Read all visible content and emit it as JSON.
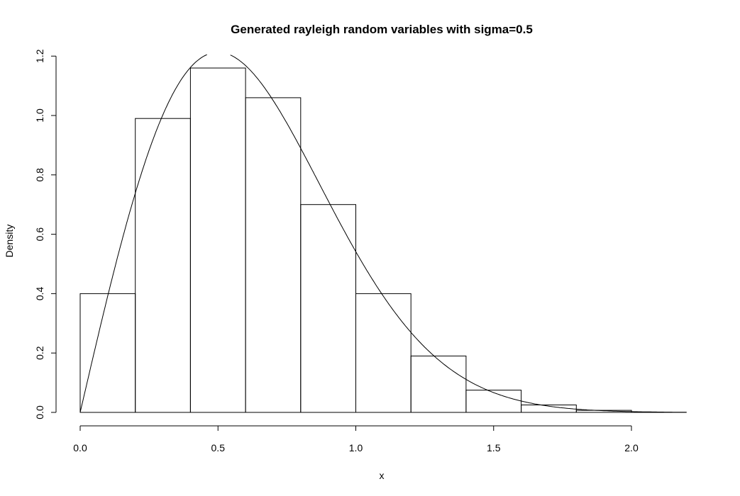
{
  "chart_data": {
    "type": "bar",
    "title": "Generated rayleigh random variables with sigma=0.5",
    "xlabel": "x",
    "ylabel": "Density",
    "xlim": [
      0.0,
      2.2
    ],
    "ylim": [
      0.0,
      1.2
    ],
    "x_ticks": [
      "0.0",
      "0.5",
      "1.0",
      "1.5",
      "2.0"
    ],
    "y_ticks": [
      "0.0",
      "0.2",
      "0.4",
      "0.6",
      "0.8",
      "1.0",
      "1.2"
    ],
    "bins": [
      {
        "start": 0.0,
        "end": 0.2,
        "density": 0.4
      },
      {
        "start": 0.2,
        "end": 0.4,
        "density": 0.99
      },
      {
        "start": 0.4,
        "end": 0.6,
        "density": 1.16
      },
      {
        "start": 0.6,
        "end": 0.8,
        "density": 1.06
      },
      {
        "start": 0.8,
        "end": 1.0,
        "density": 0.7
      },
      {
        "start": 1.0,
        "end": 1.2,
        "density": 0.4
      },
      {
        "start": 1.2,
        "end": 1.4,
        "density": 0.19
      },
      {
        "start": 1.4,
        "end": 1.6,
        "density": 0.075
      },
      {
        "start": 1.6,
        "end": 1.8,
        "density": 0.025
      },
      {
        "start": 1.8,
        "end": 2.0,
        "density": 0.007
      }
    ],
    "overlay_curve": {
      "distribution": "rayleigh",
      "sigma": 0.5,
      "x_range": [
        0.0,
        2.2
      ]
    },
    "grid": false,
    "legend": "none"
  }
}
